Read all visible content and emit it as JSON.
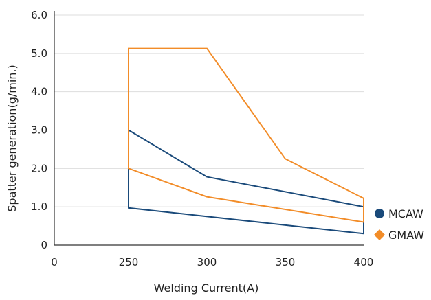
{
  "chart_data": {
    "type": "line",
    "title": "",
    "xlabel": "Welding Current(A)",
    "ylabel": "Spatter generation(g/min.)",
    "xlim": [
      0,
      400
    ],
    "ylim": [
      0,
      6.0
    ],
    "x_ticks": [
      "0",
      "250",
      "300",
      "350",
      "400"
    ],
    "y_ticks": [
      "0",
      "1.0",
      "2.0",
      "3.0",
      "4.0",
      "5.0",
      "6.0"
    ],
    "x_axis_break": "between 0 and 250",
    "grid": "horizontal",
    "legend_position": "right-bottom",
    "series": [
      {
        "name": "MCAW",
        "color": "#1a4a7a",
        "marker": "circle",
        "upper": {
          "x": [
            250,
            300,
            400
          ],
          "y": [
            3.0,
            1.78,
            1.0
          ]
        },
        "lower": {
          "x": [
            250,
            400
          ],
          "y": [
            0.97,
            0.3
          ]
        }
      },
      {
        "name": "GMAW",
        "color": "#f28c28",
        "marker": "diamond",
        "upper": {
          "x": [
            250,
            300,
            350,
            400
          ],
          "y": [
            5.13,
            5.13,
            2.25,
            1.22
          ]
        },
        "lower": {
          "x": [
            250,
            300,
            400
          ],
          "y": [
            2.0,
            1.26,
            0.6
          ]
        }
      }
    ]
  }
}
